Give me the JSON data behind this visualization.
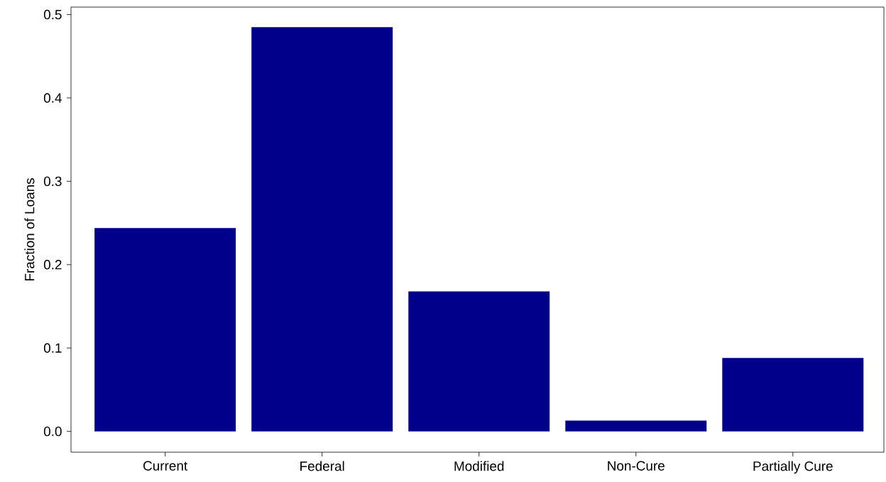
{
  "chart_data": {
    "type": "bar",
    "ylabel": "Fraction of Loans",
    "categories": [
      "Current",
      "Federal",
      "Modified",
      "Non-Cure",
      "Partially Cure"
    ],
    "values": [
      0.244,
      0.485,
      0.168,
      0.013,
      0.088
    ],
    "color": "#00008b",
    "ylim": [
      -0.025,
      0.509
    ],
    "yticks": [
      {
        "value": 0,
        "label": "0.0"
      },
      {
        "value": 0.1,
        "label": "0.1"
      },
      {
        "value": 0.2,
        "label": "0.2"
      },
      {
        "value": 0.3,
        "label": "0.3"
      },
      {
        "value": 0.4,
        "label": "0.4"
      },
      {
        "value": 0.5,
        "label": "0.5"
      }
    ],
    "grid": false
  }
}
